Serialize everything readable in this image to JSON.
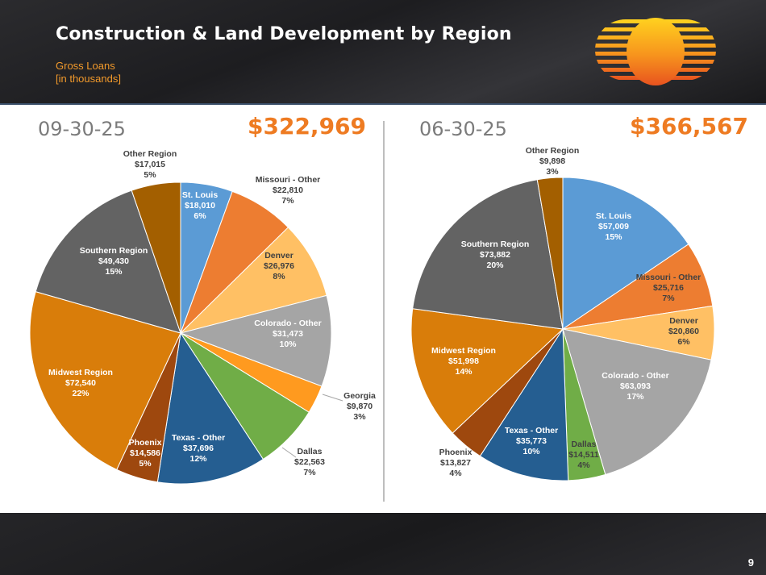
{
  "slide": {
    "title": "Construction & Land Development by Region",
    "subtitle_line1": "Gross Loans",
    "subtitle_line2": "[in thousands]",
    "page_number": "9"
  },
  "chart_data": [
    {
      "type": "pie",
      "period": "09-30-25",
      "total": "$322,969",
      "slices": [
        {
          "name": "St. Louis",
          "value": 18010,
          "label": "$18,010",
          "pct": "6%",
          "color": "#5b9bd5"
        },
        {
          "name": "Missouri - Other",
          "value": 22810,
          "label": "$22,810",
          "pct": "7%",
          "color": "#ed7d31"
        },
        {
          "name": "Denver",
          "value": 26976,
          "label": "$26,976",
          "pct": "8%",
          "color": "#ffc064"
        },
        {
          "name": "Colorado - Other",
          "value": 31473,
          "label": "$31,473",
          "pct": "10%",
          "color": "#a5a5a5"
        },
        {
          "name": "Georgia",
          "value": 9870,
          "label": "$9,870",
          "pct": "3%",
          "color": "#ff9a1f"
        },
        {
          "name": "Dallas",
          "value": 22563,
          "label": "$22,563",
          "pct": "7%",
          "color": "#70ad47"
        },
        {
          "name": "Texas - Other",
          "value": 37696,
          "label": "$37,696",
          "pct": "12%",
          "color": "#255e91"
        },
        {
          "name": "Phoenix",
          "value": 14586,
          "label": "$14,586",
          "pct": "5%",
          "color": "#9e480e"
        },
        {
          "name": "Midwest Region",
          "value": 72540,
          "label": "$72,540",
          "pct": "22%",
          "color": "#d97d0a"
        },
        {
          "name": "Southern Region",
          "value": 49430,
          "label": "$49,430",
          "pct": "15%",
          "color": "#636363"
        },
        {
          "name": "Other Region",
          "value": 17015,
          "label": "$17,015",
          "pct": "5%",
          "color": "#a35f00"
        }
      ]
    },
    {
      "type": "pie",
      "period": "06-30-25",
      "total": "$366,567",
      "slices": [
        {
          "name": "St. Louis",
          "value": 57009,
          "label": "$57,009",
          "pct": "15%",
          "color": "#5b9bd5"
        },
        {
          "name": "Missouri - Other",
          "value": 25716,
          "label": "$25,716",
          "pct": "7%",
          "color": "#ed7d31"
        },
        {
          "name": "Denver",
          "value": 20860,
          "label": "$20,860",
          "pct": "6%",
          "color": "#ffc064"
        },
        {
          "name": "Colorado - Other",
          "value": 63093,
          "label": "$63,093",
          "pct": "17%",
          "color": "#a5a5a5"
        },
        {
          "name": "Dallas",
          "value": 14511,
          "label": "$14,511",
          "pct": "4%",
          "color": "#70ad47"
        },
        {
          "name": "Texas - Other",
          "value": 35773,
          "label": "$35,773",
          "pct": "10%",
          "color": "#255e91"
        },
        {
          "name": "Phoenix",
          "value": 13827,
          "label": "$13,827",
          "pct": "4%",
          "color": "#9e480e"
        },
        {
          "name": "Midwest Region",
          "value": 51998,
          "label": "$51,998",
          "pct": "14%",
          "color": "#d97d0a"
        },
        {
          "name": "Southern Region",
          "value": 73882,
          "label": "$73,882",
          "pct": "20%",
          "color": "#636363"
        },
        {
          "name": "Other Region",
          "value": 9898,
          "label": "$9,898",
          "pct": "3%",
          "color": "#a35f00"
        }
      ]
    }
  ]
}
